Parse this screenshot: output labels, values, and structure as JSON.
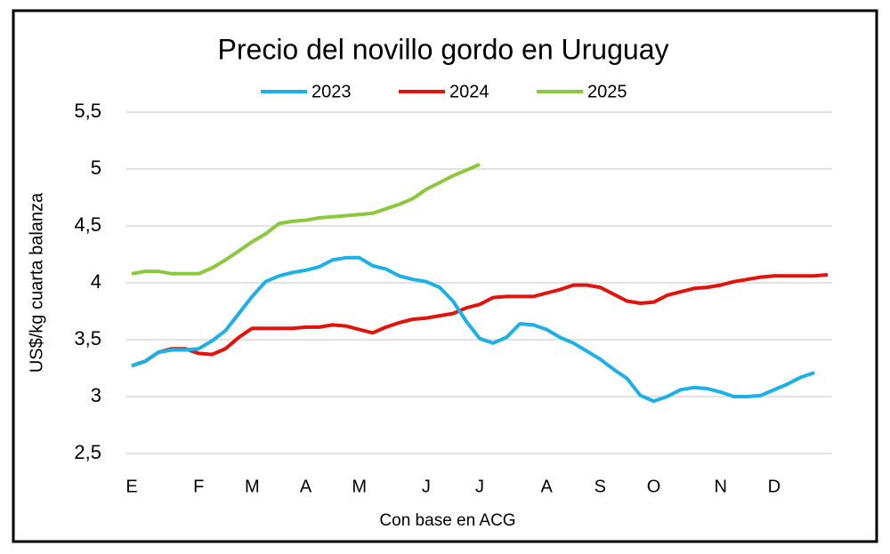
{
  "chart_data": {
    "type": "line",
    "title": "Precio del novillo gordo en Uruguay",
    "x_label": "Con base en ACG",
    "y_label": "US$/kg cuarta balanza",
    "legend": "top",
    "grid": true,
    "categories": [
      "E",
      null,
      null,
      null,
      null,
      "F",
      null,
      null,
      null,
      "M",
      null,
      null,
      null,
      "A",
      null,
      null,
      null,
      "M",
      null,
      null,
      null,
      null,
      "J",
      null,
      null,
      null,
      "J",
      null,
      null,
      null,
      null,
      "A",
      null,
      null,
      null,
      "S",
      null,
      null,
      null,
      "O",
      null,
      null,
      null,
      null,
      "N",
      null,
      null,
      null,
      "D",
      null,
      null,
      null,
      null
    ],
    "ylim": [
      2.5,
      5.5
    ],
    "yticks": [
      {
        "value": 2.5,
        "label": "2,5"
      },
      3,
      {
        "value": 3.5,
        "label": "3,5"
      },
      4,
      {
        "value": 4.5,
        "label": "4,5"
      },
      5,
      {
        "value": 5.5,
        "label": "5,5"
      }
    ],
    "series": [
      {
        "name": "2023",
        "color": "#1cb0e8",
        "values": [
          3.27,
          3.31,
          3.39,
          3.41,
          3.41,
          3.42,
          3.49,
          3.58,
          3.73,
          3.88,
          4.01,
          4.06,
          4.09,
          4.11,
          4.14,
          4.2,
          4.22,
          4.22,
          4.15,
          4.12,
          4.06,
          4.03,
          4.01,
          3.96,
          3.84,
          3.66,
          3.51,
          3.47,
          3.52,
          3.64,
          3.63,
          3.59,
          3.52,
          3.47,
          3.4,
          3.33,
          3.24,
          3.16,
          3.01,
          2.96,
          3.0,
          3.06,
          3.08,
          3.07,
          3.04,
          3.0,
          3.0,
          3.01,
          3.06,
          3.11,
          3.17,
          3.21,
          null
        ]
      },
      {
        "name": "2024",
        "color": "#e3120b",
        "values": [
          3.27,
          3.31,
          3.39,
          3.42,
          3.42,
          3.38,
          3.37,
          3.42,
          3.52,
          3.6,
          3.6,
          3.6,
          3.6,
          3.61,
          3.61,
          3.63,
          3.62,
          3.59,
          3.56,
          3.61,
          3.65,
          3.68,
          3.69,
          3.71,
          3.73,
          3.78,
          3.81,
          3.87,
          3.88,
          3.88,
          3.88,
          3.91,
          3.94,
          3.98,
          3.98,
          3.96,
          3.9,
          3.84,
          3.82,
          3.83,
          3.89,
          3.92,
          3.95,
          3.96,
          3.98,
          4.01,
          4.03,
          4.05,
          4.06,
          4.06,
          4.06,
          4.06,
          4.07
        ]
      },
      {
        "name": "2025",
        "color": "#8cc83c",
        "values": [
          4.08,
          4.1,
          4.1,
          4.08,
          4.08,
          4.08,
          4.13,
          4.2,
          4.28,
          4.36,
          4.43,
          4.52,
          4.54,
          4.55,
          4.57,
          4.58,
          4.59,
          4.6,
          4.61,
          4.65,
          4.69,
          4.74,
          4.82,
          4.88,
          4.94,
          4.99,
          5.04,
          null,
          null,
          null,
          null,
          null,
          null,
          null,
          null,
          null,
          null,
          null,
          null,
          null,
          null,
          null,
          null,
          null,
          null,
          null,
          null,
          null,
          null,
          null,
          null,
          null,
          null
        ]
      }
    ]
  }
}
